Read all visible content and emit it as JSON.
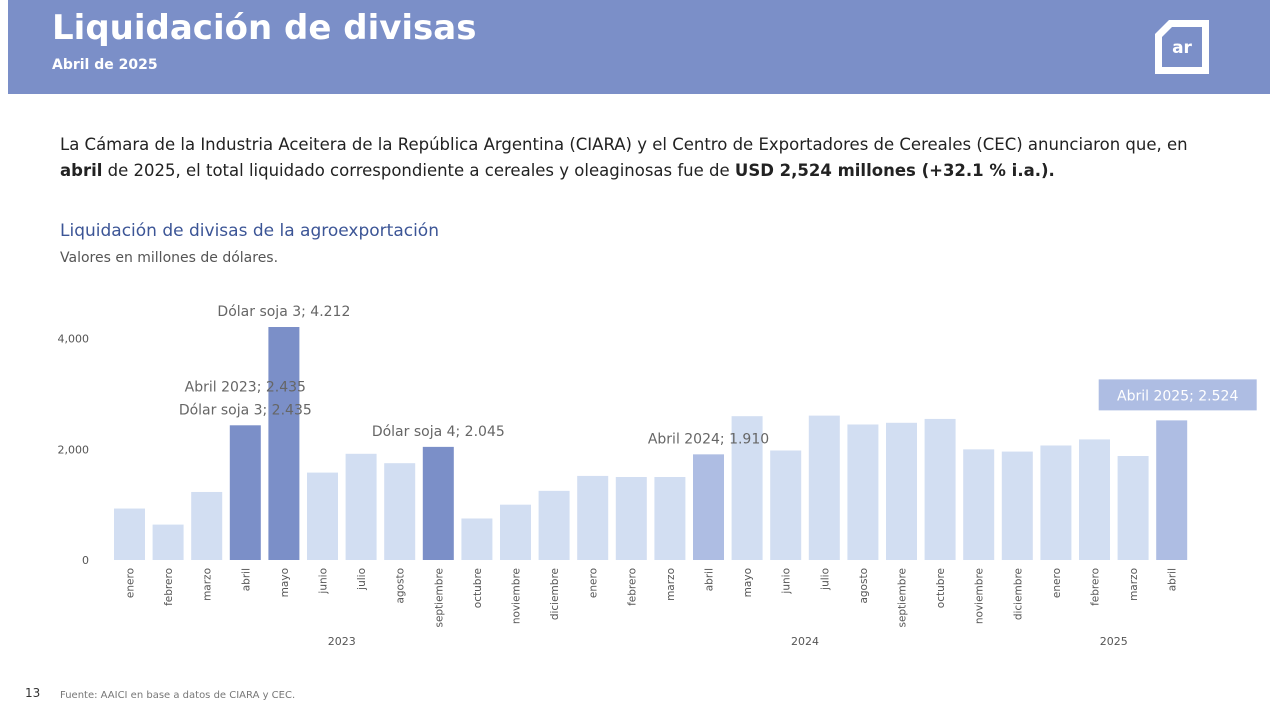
{
  "header": {
    "title": "Liquidación de divisas",
    "subtitle": "Abril de 2025",
    "logo_text": "ar",
    "color": "#7b8fc8"
  },
  "intro": {
    "part1": "La Cámara de la Industria Aceitera de la República Argentina (CIARA) y el Centro de Exportadores de Cereales (CEC) anunciaron que, en ",
    "bold1": "abril",
    "part2": " de 2025, el total liquidado correspondiente a cereales y oleaginosas fue de ",
    "bold2": "USD 2,524 millones (+32.1 % i.a.)."
  },
  "chart_data": {
    "type": "bar",
    "title": "Liquidación de divisas de la agroexportación",
    "subtitle": "Valores en millones de dólares.",
    "categories": [
      "enero",
      "febrero",
      "marzo",
      "abril",
      "mayo",
      "junio",
      "julio",
      "agosto",
      "septiembre",
      "octubre",
      "noviembre",
      "diciembre",
      "enero",
      "febrero",
      "marzo",
      "abril",
      "mayo",
      "junio",
      "julio",
      "agosto",
      "septiembre",
      "octubre",
      "noviembre",
      "diciembre",
      "enero",
      "febrero",
      "marzo",
      "abril"
    ],
    "years": [
      {
        "label": "2023",
        "count": 12
      },
      {
        "label": "2024",
        "count": 12
      },
      {
        "label": "2025",
        "count": 4
      }
    ],
    "values": [
      930,
      640,
      1230,
      2435,
      4212,
      1580,
      1920,
      1750,
      2045,
      750,
      1000,
      1250,
      1520,
      1500,
      1500,
      1910,
      2600,
      1980,
      2610,
      2450,
      2480,
      2550,
      2000,
      1960,
      2070,
      2180,
      1880,
      2524
    ],
    "highlight": [
      "light",
      "light",
      "light",
      "dark",
      "dark",
      "light",
      "light",
      "light",
      "dark",
      "light",
      "light",
      "light",
      "light",
      "light",
      "light",
      "medium",
      "light",
      "light",
      "light",
      "light",
      "light",
      "light",
      "light",
      "light",
      "light",
      "light",
      "light",
      "medium"
    ],
    "colors": {
      "light": "#d2def2",
      "dark": "#7b8fc8",
      "medium": "#aebde3"
    },
    "yticks": [
      0,
      2000,
      4000
    ],
    "ytick_labels": [
      "0",
      "2,000",
      "4,000"
    ],
    "ylim": [
      0,
      4212
    ],
    "annotations": [
      {
        "index": 4,
        "lines": [
          "Dólar soja 3; 4.212"
        ]
      },
      {
        "index": 3,
        "lines": [
          "Abril 2023; 2.435",
          "Dólar soja 3; 2.435"
        ]
      },
      {
        "index": 8,
        "lines": [
          "Dólar soja 4; 2.045"
        ]
      },
      {
        "index": 15,
        "lines": [
          "Abril 2024; 1.910"
        ]
      },
      {
        "index": 27,
        "lines": [
          "Abril 2025; 2.524"
        ],
        "boxed": true
      }
    ]
  },
  "footer": {
    "page_number": "13",
    "source": "Fuente: AAICI en base a datos de CIARA y CEC."
  }
}
